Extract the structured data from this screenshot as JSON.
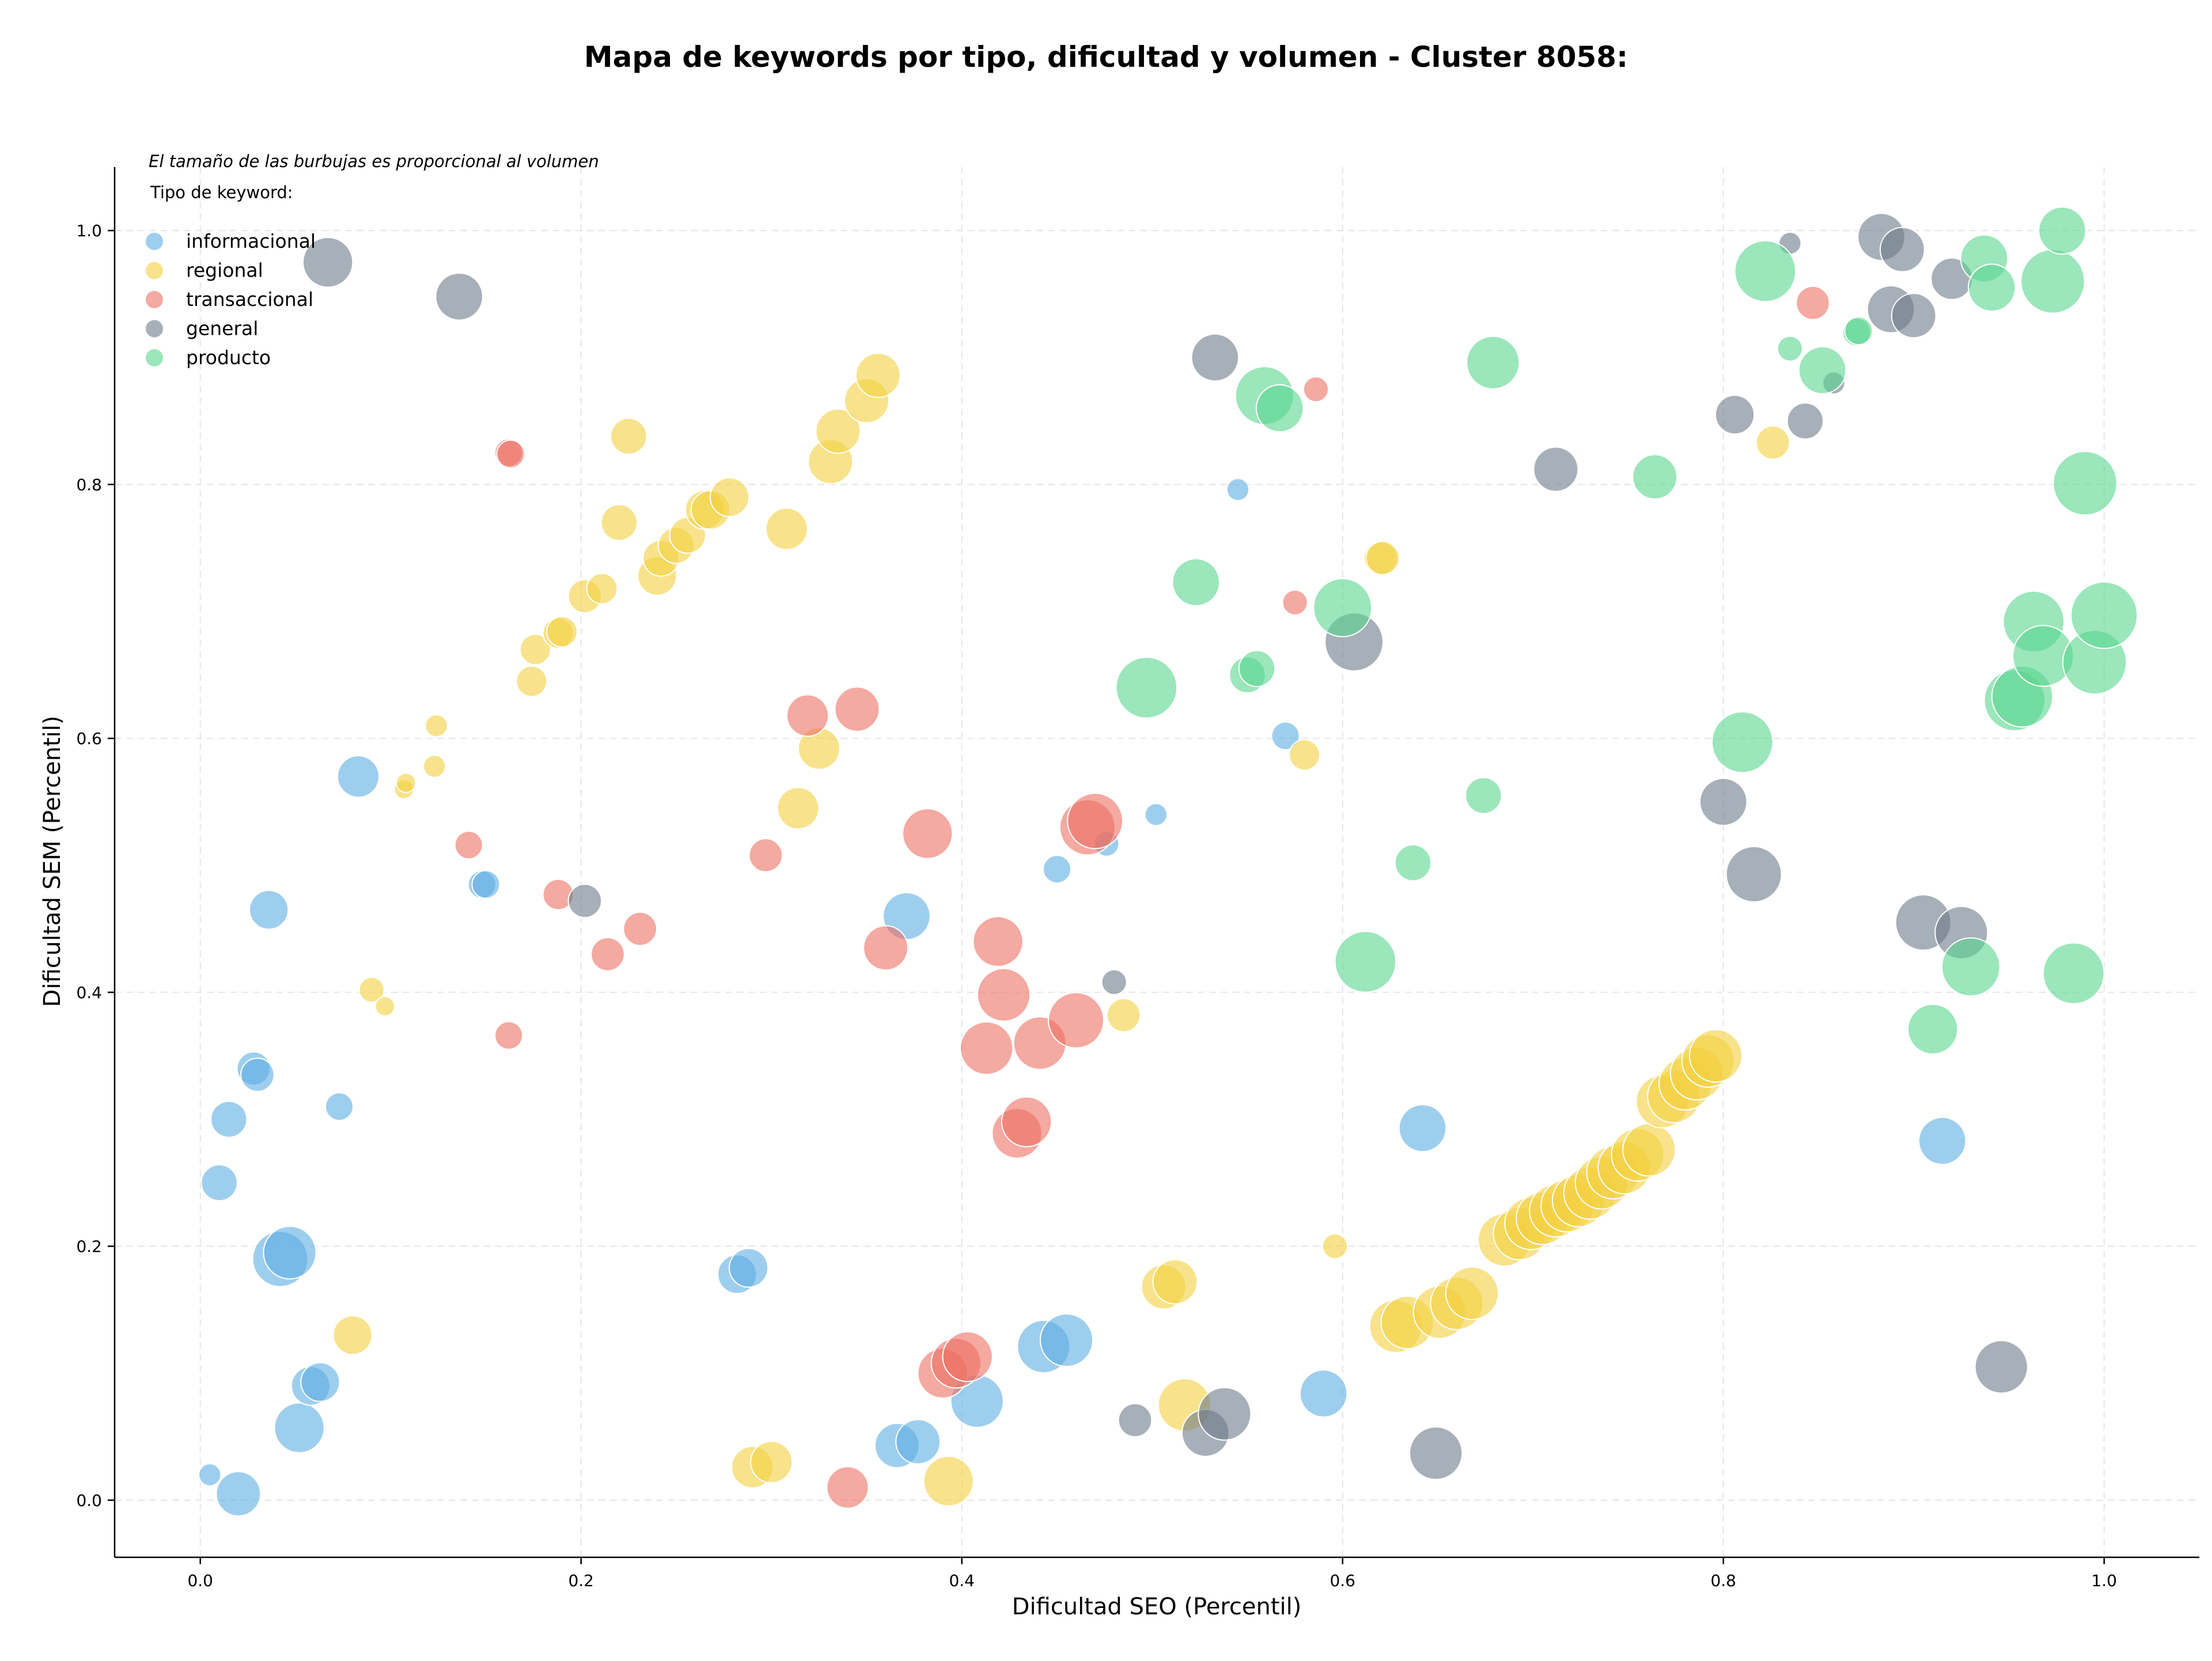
{
  "chart_data": {
    "type": "scatter",
    "title": "Mapa de keywords por tipo, dificultad y volumen - Cluster 8058:",
    "xlabel": "Dificultad SEO (Percentil)",
    "ylabel": "Dificultad SEM (Percentil)",
    "note": "El tamaño de las burbujas es proporcional al volumen",
    "legend_title": "Tipo de keyword:",
    "legend_position": "top-left",
    "grid": true,
    "xlim": [
      -0.045,
      1.05
    ],
    "ylim": [
      -0.045,
      1.05
    ],
    "x_ticks": [
      "0.0",
      "0.2",
      "0.4",
      "0.6",
      "0.8",
      "1.0"
    ],
    "y_ticks": [
      "0.0",
      "0.2",
      "0.4",
      "0.6",
      "0.8",
      "1.0"
    ],
    "series": [
      {
        "name": "informacional",
        "color": "#5DADE2",
        "points": [
          [
            0.005,
            0.02,
            0.8
          ],
          [
            0.02,
            0.005,
            1.6
          ],
          [
            0.01,
            0.25,
            1.3
          ],
          [
            0.015,
            0.3,
            1.3
          ],
          [
            0.028,
            0.34,
            1.2
          ],
          [
            0.03,
            0.335,
            1.2
          ],
          [
            0.036,
            0.465,
            1.4
          ],
          [
            0.042,
            0.19,
            2.0
          ],
          [
            0.047,
            0.195,
            1.9
          ],
          [
            0.052,
            0.057,
            1.8
          ],
          [
            0.058,
            0.09,
            1.4
          ],
          [
            0.063,
            0.093,
            1.4
          ],
          [
            0.073,
            0.31,
            1.0
          ],
          [
            0.083,
            0.57,
            1.5
          ],
          [
            0.148,
            0.485,
            1.0
          ],
          [
            0.15,
            0.485,
            1.0
          ],
          [
            0.282,
            0.178,
            1.4
          ],
          [
            0.288,
            0.183,
            1.4
          ],
          [
            0.366,
            0.043,
            1.6
          ],
          [
            0.377,
            0.046,
            1.6
          ],
          [
            0.371,
            0.46,
            1.7
          ],
          [
            0.408,
            0.078,
            1.9
          ],
          [
            0.443,
            0.121,
            1.9
          ],
          [
            0.455,
            0.126,
            1.9
          ],
          [
            0.45,
            0.497,
            1.0
          ],
          [
            0.476,
            0.517,
            0.9
          ],
          [
            0.502,
            0.54,
            0.8
          ],
          [
            0.545,
            0.796,
            0.8
          ],
          [
            0.57,
            0.602,
            1.0
          ],
          [
            0.59,
            0.084,
            1.7
          ],
          [
            0.642,
            0.293,
            1.7
          ],
          [
            0.915,
            0.283,
            1.7
          ]
        ]
      },
      {
        "name": "regional",
        "color": "#F4D03F",
        "points": [
          [
            0.08,
            0.13,
            1.4
          ],
          [
            0.09,
            0.402,
            0.9
          ],
          [
            0.097,
            0.389,
            0.7
          ],
          [
            0.107,
            0.56,
            0.7
          ],
          [
            0.108,
            0.565,
            0.7
          ],
          [
            0.123,
            0.578,
            0.8
          ],
          [
            0.124,
            0.61,
            0.8
          ],
          [
            0.174,
            0.645,
            1.1
          ],
          [
            0.176,
            0.67,
            1.1
          ],
          [
            0.188,
            0.683,
            1.1
          ],
          [
            0.19,
            0.684,
            1.1
          ],
          [
            0.202,
            0.712,
            1.2
          ],
          [
            0.211,
            0.718,
            1.1
          ],
          [
            0.22,
            0.77,
            1.3
          ],
          [
            0.225,
            0.838,
            1.3
          ],
          [
            0.24,
            0.728,
            1.4
          ],
          [
            0.242,
            0.742,
            1.3
          ],
          [
            0.25,
            0.752,
            1.3
          ],
          [
            0.256,
            0.76,
            1.3
          ],
          [
            0.265,
            0.78,
            1.4
          ],
          [
            0.268,
            0.78,
            1.4
          ],
          [
            0.278,
            0.79,
            1.4
          ],
          [
            0.29,
            0.026,
            1.5
          ],
          [
            0.3,
            0.03,
            1.5
          ],
          [
            0.308,
            0.765,
            1.5
          ],
          [
            0.314,
            0.545,
            1.5
          ],
          [
            0.325,
            0.592,
            1.5
          ],
          [
            0.331,
            0.818,
            1.6
          ],
          [
            0.335,
            0.842,
            1.6
          ],
          [
            0.35,
            0.866,
            1.6
          ],
          [
            0.356,
            0.886,
            1.6
          ],
          [
            0.393,
            0.015,
            1.8
          ],
          [
            0.485,
            0.382,
            1.2
          ],
          [
            0.506,
            0.168,
            1.6
          ],
          [
            0.512,
            0.172,
            1.6
          ],
          [
            0.517,
            0.075,
            1.9
          ],
          [
            0.58,
            0.587,
            1.1
          ],
          [
            0.596,
            0.2,
            0.9
          ],
          [
            0.62,
            0.742,
            1.2
          ],
          [
            0.621,
            0.742,
            1.2
          ],
          [
            0.628,
            0.137,
            1.9
          ],
          [
            0.634,
            0.14,
            1.9
          ],
          [
            0.651,
            0.148,
            1.9
          ],
          [
            0.66,
            0.155,
            1.9
          ],
          [
            0.668,
            0.163,
            1.9
          ],
          [
            0.685,
            0.205,
            1.9
          ],
          [
            0.693,
            0.21,
            1.9
          ],
          [
            0.699,
            0.218,
            1.9
          ],
          [
            0.705,
            0.222,
            1.9
          ],
          [
            0.712,
            0.228,
            1.9
          ],
          [
            0.718,
            0.232,
            1.9
          ],
          [
            0.724,
            0.236,
            1.9
          ],
          [
            0.73,
            0.242,
            1.9
          ],
          [
            0.736,
            0.25,
            1.9
          ],
          [
            0.742,
            0.258,
            1.9
          ],
          [
            0.748,
            0.262,
            1.9
          ],
          [
            0.755,
            0.272,
            1.9
          ],
          [
            0.761,
            0.276,
            1.9
          ],
          [
            0.768,
            0.314,
            1.9
          ],
          [
            0.774,
            0.318,
            1.9
          ],
          [
            0.78,
            0.328,
            1.9
          ],
          [
            0.786,
            0.336,
            1.9
          ],
          [
            0.792,
            0.346,
            1.9
          ],
          [
            0.796,
            0.35,
            1.9
          ],
          [
            0.826,
            0.833,
            1.2
          ]
        ]
      },
      {
        "name": "transaccional",
        "color": "#EC7063",
        "points": [
          [
            0.162,
            0.825,
            1.0
          ],
          [
            0.163,
            0.824,
            1.0
          ],
          [
            0.141,
            0.516,
            1.0
          ],
          [
            0.162,
            0.366,
            1.0
          ],
          [
            0.188,
            0.477,
            1.1
          ],
          [
            0.214,
            0.43,
            1.2
          ],
          [
            0.231,
            0.45,
            1.2
          ],
          [
            0.297,
            0.508,
            1.2
          ],
          [
            0.319,
            0.618,
            1.5
          ],
          [
            0.345,
            0.623,
            1.6
          ],
          [
            0.34,
            0.01,
            1.5
          ],
          [
            0.36,
            0.435,
            1.6
          ],
          [
            0.382,
            0.525,
            1.8
          ],
          [
            0.39,
            0.1,
            1.8
          ],
          [
            0.397,
            0.108,
            1.8
          ],
          [
            0.403,
            0.113,
            1.8
          ],
          [
            0.413,
            0.356,
            1.9
          ],
          [
            0.419,
            0.44,
            1.8
          ],
          [
            0.422,
            0.398,
            1.9
          ],
          [
            0.429,
            0.289,
            1.8
          ],
          [
            0.434,
            0.298,
            1.8
          ],
          [
            0.441,
            0.36,
            1.9
          ],
          [
            0.46,
            0.378,
            2.0
          ],
          [
            0.466,
            0.53,
            2.0
          ],
          [
            0.47,
            0.535,
            2.0
          ],
          [
            0.575,
            0.707,
            0.9
          ],
          [
            0.586,
            0.875,
            0.9
          ],
          [
            0.847,
            0.943,
            1.2
          ]
        ]
      },
      {
        "name": "general",
        "color": "#6C7A89",
        "points": [
          [
            0.067,
            0.975,
            1.8
          ],
          [
            0.136,
            0.948,
            1.7
          ],
          [
            0.202,
            0.472,
            1.2
          ],
          [
            0.48,
            0.408,
            0.9
          ],
          [
            0.491,
            0.063,
            1.2
          ],
          [
            0.528,
            0.053,
            1.7
          ],
          [
            0.538,
            0.068,
            1.9
          ],
          [
            0.533,
            0.9,
            1.7
          ],
          [
            0.606,
            0.676,
            2.1
          ],
          [
            0.649,
            0.037,
            1.9
          ],
          [
            0.712,
            0.812,
            1.6
          ],
          [
            0.8,
            0.55,
            1.7
          ],
          [
            0.806,
            0.855,
            1.4
          ],
          [
            0.816,
            0.493,
            2.0
          ],
          [
            0.835,
            0.99,
            0.8
          ],
          [
            0.843,
            0.85,
            1.3
          ],
          [
            0.858,
            0.88,
            0.8
          ],
          [
            0.883,
            0.995,
            1.7
          ],
          [
            0.888,
            0.938,
            1.7
          ],
          [
            0.894,
            0.985,
            1.6
          ],
          [
            0.9,
            0.933,
            1.6
          ],
          [
            0.92,
            0.962,
            1.5
          ],
          [
            0.905,
            0.455,
            2.0
          ],
          [
            0.925,
            0.447,
            1.9
          ],
          [
            0.946,
            0.105,
            1.9
          ]
        ]
      },
      {
        "name": "producto",
        "color": "#58D68D",
        "points": [
          [
            0.497,
            0.64,
            2.2
          ],
          [
            0.523,
            0.723,
            1.7
          ],
          [
            0.55,
            0.65,
            1.3
          ],
          [
            0.555,
            0.655,
            1.3
          ],
          [
            0.559,
            0.87,
            2.1
          ],
          [
            0.567,
            0.86,
            1.7
          ],
          [
            0.6,
            0.703,
            2.1
          ],
          [
            0.612,
            0.424,
            2.2
          ],
          [
            0.637,
            0.502,
            1.3
          ],
          [
            0.674,
            0.555,
            1.3
          ],
          [
            0.679,
            0.896,
            1.9
          ],
          [
            0.764,
            0.806,
            1.6
          ],
          [
            0.81,
            0.597,
            2.2
          ],
          [
            0.822,
            0.968,
            2.2
          ],
          [
            0.835,
            0.907,
            0.9
          ],
          [
            0.852,
            0.89,
            1.7
          ],
          [
            0.87,
            0.92,
            1.0
          ],
          [
            0.871,
            0.921,
            1.0
          ],
          [
            0.91,
            0.371,
            1.8
          ],
          [
            0.93,
            0.42,
            2.1
          ],
          [
            0.937,
            0.978,
            1.7
          ],
          [
            0.941,
            0.955,
            1.7
          ],
          [
            0.953,
            0.63,
            2.2
          ],
          [
            0.957,
            0.633,
            2.2
          ],
          [
            0.963,
            0.692,
            2.2
          ],
          [
            0.968,
            0.665,
            2.2
          ],
          [
            0.973,
            0.96,
            2.3
          ],
          [
            0.978,
            1.0,
            1.7
          ],
          [
            0.984,
            0.415,
            2.2
          ],
          [
            0.99,
            0.801,
            2.3
          ],
          [
            0.995,
            0.66,
            2.3
          ],
          [
            1.0,
            0.697,
            2.4
          ]
        ]
      }
    ]
  }
}
